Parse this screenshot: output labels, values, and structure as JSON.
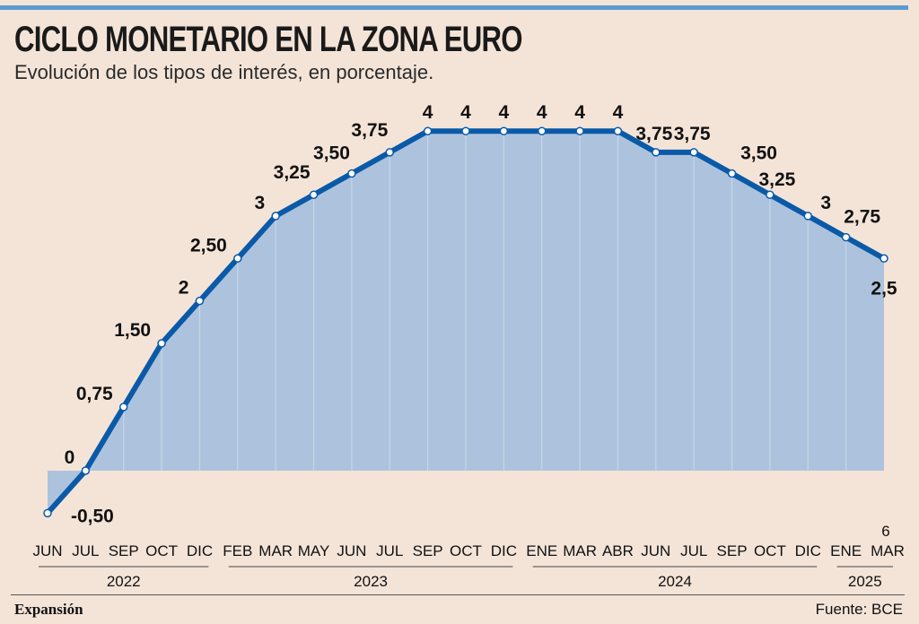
{
  "header": {
    "title": "CICLO MONETARIO EN LA ZONA EURO",
    "subtitle": "Evolución de los tipos de interés, en porcentaje."
  },
  "footer": {
    "brand": "Expansión",
    "source": "Fuente: BCE"
  },
  "colors": {
    "line": "#0a5aa8",
    "fill": "#adc3dd",
    "grid": "#c6d6e8",
    "background": "#f4e4d8",
    "accent_rule": "#5b9bd1"
  },
  "chart_data": {
    "type": "area",
    "title": "CICLO MONETARIO EN LA ZONA EURO",
    "ylabel": "porcentaje",
    "ylim": [
      -0.5,
      4
    ],
    "points": [
      {
        "month": "JUN",
        "value": -0.5,
        "label": "-0,50"
      },
      {
        "month": "JUL",
        "value": 0,
        "label": "0"
      },
      {
        "month": "SEP",
        "value": 0.75,
        "label": "0,75"
      },
      {
        "month": "OCT",
        "value": 1.5,
        "label": "1,50"
      },
      {
        "month": "DIC",
        "value": 2,
        "label": "2"
      },
      {
        "month": "FEB",
        "value": 2.5,
        "label": "2,50"
      },
      {
        "month": "MAR",
        "value": 3,
        "label": "3"
      },
      {
        "month": "MAY",
        "value": 3.25,
        "label": "3,25"
      },
      {
        "month": "JUN",
        "value": 3.5,
        "label": "3,50"
      },
      {
        "month": "JUL",
        "value": 3.75,
        "label": "3,75"
      },
      {
        "month": "SEP",
        "value": 4,
        "label": "4"
      },
      {
        "month": "OCT",
        "value": 4,
        "label": "4"
      },
      {
        "month": "DIC",
        "value": 4,
        "label": "4"
      },
      {
        "month": "ENE",
        "value": 4,
        "label": "4"
      },
      {
        "month": "MAR",
        "value": 4,
        "label": "4"
      },
      {
        "month": "ABR",
        "value": 4,
        "label": "4"
      },
      {
        "month": "JUN",
        "value": 3.75,
        "label": "3,75"
      },
      {
        "month": "JUL",
        "value": 3.75,
        "label": "3,75"
      },
      {
        "month": "SEP",
        "value": 3.5,
        "label": "3,50"
      },
      {
        "month": "OCT",
        "value": 3.25,
        "label": "3,25"
      },
      {
        "month": "DIC",
        "value": 3,
        "label": "3"
      },
      {
        "month": "ENE",
        "value": 2.75,
        "label": "2,75"
      },
      {
        "month": "MAR",
        "value": 2.5,
        "label": "2,5"
      }
    ],
    "mar_2025_extra_label": "6",
    "years": [
      {
        "label": "2022",
        "from": 0,
        "to": 4
      },
      {
        "label": "2023",
        "from": 5,
        "to": 12
      },
      {
        "label": "2024",
        "from": 13,
        "to": 20
      },
      {
        "label": "2025",
        "from": 21,
        "to": 22
      }
    ]
  }
}
